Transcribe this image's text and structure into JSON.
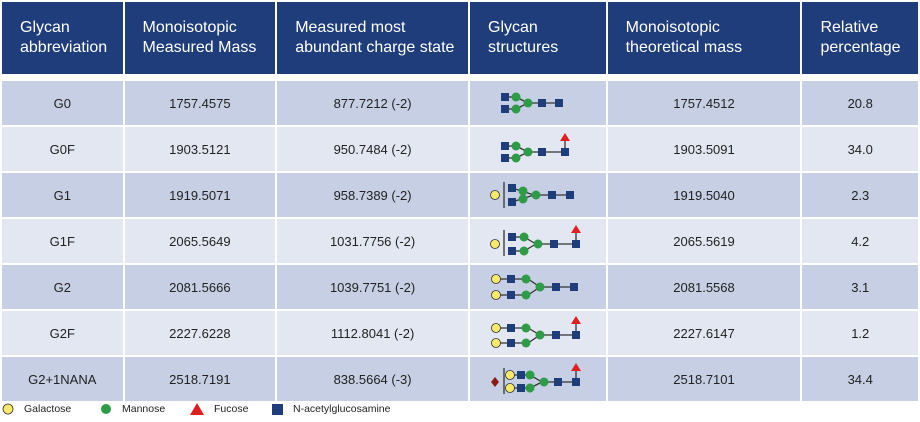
{
  "headers": [
    "Glycan abbreviation",
    "Monoisotopic Measured Mass",
    "Measured most abundant charge state",
    "Glycan structures",
    "Monoisotopic theoretical mass",
    "Relative percentage"
  ],
  "rows": [
    {
      "abbr": "G0",
      "measured_mass": "1757.4575",
      "charge_state": "877.7212 (-2)",
      "structure_icon": "g0-structure",
      "theoretical_mass": "1757.4512",
      "relative": "20.8"
    },
    {
      "abbr": "G0F",
      "measured_mass": "1903.5121",
      "charge_state": "950.7484 (-2)",
      "structure_icon": "g0f-structure",
      "theoretical_mass": "1903.5091",
      "relative": "34.0"
    },
    {
      "abbr": "G1",
      "measured_mass": "1919.5071",
      "charge_state": "958.7389 (-2)",
      "structure_icon": "g1-structure",
      "theoretical_mass": "1919.5040",
      "relative": "2.3"
    },
    {
      "abbr": "G1F",
      "measured_mass": "2065.5649",
      "charge_state": "1031.7756 (-2)",
      "structure_icon": "g1f-structure",
      "theoretical_mass": "2065.5619",
      "relative": "4.2"
    },
    {
      "abbr": "G2",
      "measured_mass": "2081.5666",
      "charge_state": "1039.7751 (-2)",
      "structure_icon": "g2-structure",
      "theoretical_mass": "2081.5568",
      "relative": "3.1"
    },
    {
      "abbr": "G2F",
      "measured_mass": "2227.6228",
      "charge_state": "1112.8041 (-2)",
      "structure_icon": "g2f-structure",
      "theoretical_mass": "2227.6147",
      "relative": "1.2"
    },
    {
      "abbr": "G2+1NANA",
      "measured_mass": "2518.7191",
      "charge_state": "838.5664 (-3)",
      "structure_icon": "g2-1nana-structure",
      "theoretical_mass": "2518.7101",
      "relative": "34.4"
    }
  ],
  "legend": [
    {
      "label": "Galactose",
      "icon": "galactose-yellow-circle-icon"
    },
    {
      "label": "Mannose",
      "icon": "mannose-green-circle-icon"
    },
    {
      "label": "Fucose",
      "icon": "fucose-red-triangle-icon"
    },
    {
      "label": "N-acetylglucosamine",
      "icon": "glcnac-blue-square-icon"
    }
  ],
  "colors": {
    "header": "#1f3d7a",
    "row_dark": "#c7cfe4",
    "row_light": "#e3e7f1",
    "galactose": "#f7e96b",
    "mannose": "#2e9b47",
    "fucose": "#e02020",
    "glcnac": "#1f3d7a",
    "sialic_acid": "#8b1a1a"
  }
}
